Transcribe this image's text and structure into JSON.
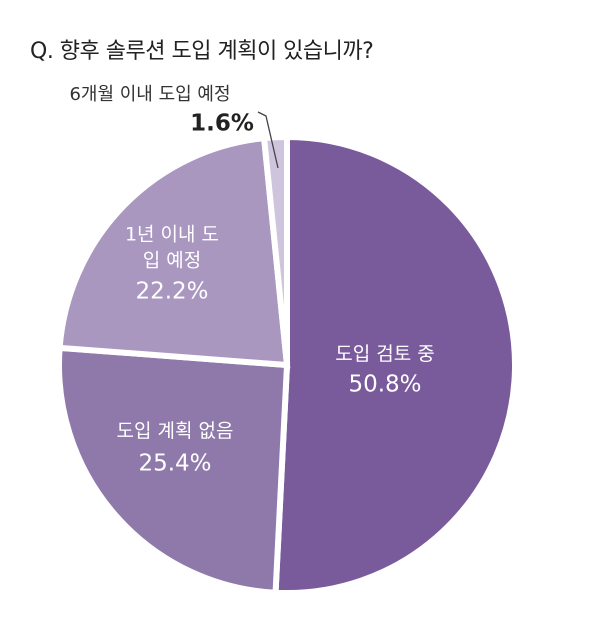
{
  "chart_data": {
    "type": "pie",
    "title": "Q. 향후 솔루션 도입 계획이 있습니까?",
    "categories": [
      "도입 검토 중",
      "도입 계획 없음",
      "1년 이내 도입 예정",
      "6개월 이내 도입 예정"
    ],
    "values": [
      50.8,
      25.4,
      22.2,
      1.6
    ],
    "value_labels": [
      "50.8%",
      "25.4%",
      "22.2%",
      "1.6%"
    ],
    "colors": [
      "#795a9b",
      "#8f79aa",
      "#a997c0",
      "#cfc4dd"
    ]
  }
}
